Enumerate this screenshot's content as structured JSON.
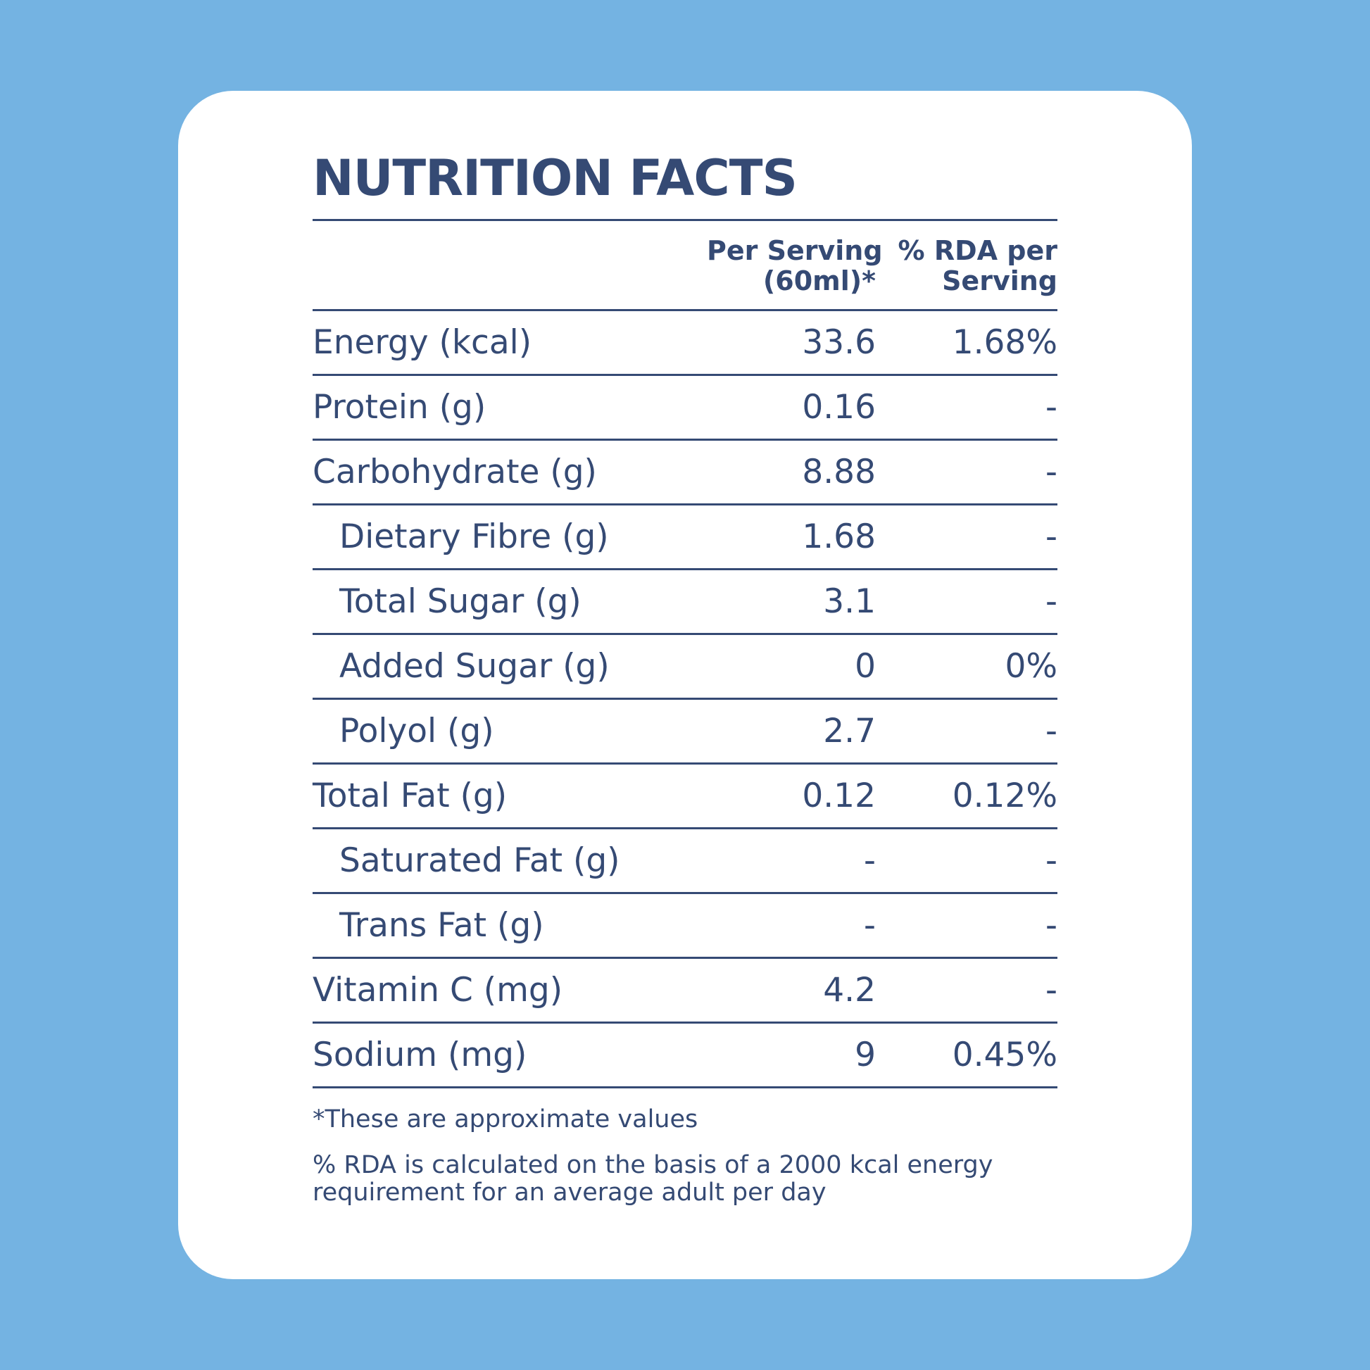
{
  "title": "NUTRITION FACTS",
  "table": {
    "header": [
      [
        "Per Serving",
        "(60ml)*"
      ],
      [
        "% RDA per",
        "Serving"
      ]
    ],
    "rows": [
      [
        "Energy (kcal)",
        "33.6",
        "1.68%"
      ],
      [
        "Protein (g)",
        "0.16",
        "-"
      ],
      [
        "Carbohydrate (g)",
        "8.88",
        "-"
      ],
      [
        "Dietary Fibre (g)",
        "1.68",
        "-"
      ],
      [
        "Total Sugar (g)",
        "3.1",
        "-"
      ],
      [
        "Added Sugar (g)",
        "0",
        "0%"
      ],
      [
        "Polyol (g)",
        "2.7",
        "-"
      ],
      [
        "Total Fat (g)",
        "0.12",
        "0.12%"
      ],
      [
        "Saturated Fat (g)",
        "-",
        "-"
      ],
      [
        "Trans Fat (g)",
        "-",
        "-"
      ],
      [
        "Vitamin C (mg)",
        "4.2",
        "-"
      ],
      [
        "Sodium (mg)",
        "9",
        "0.45%"
      ]
    ]
  },
  "footnote": "*These are approximate values",
  "note": [
    "% RDA is calculated on the basis of a 2000 kcal energy",
    "requirement for an average adult per day"
  ]
}
